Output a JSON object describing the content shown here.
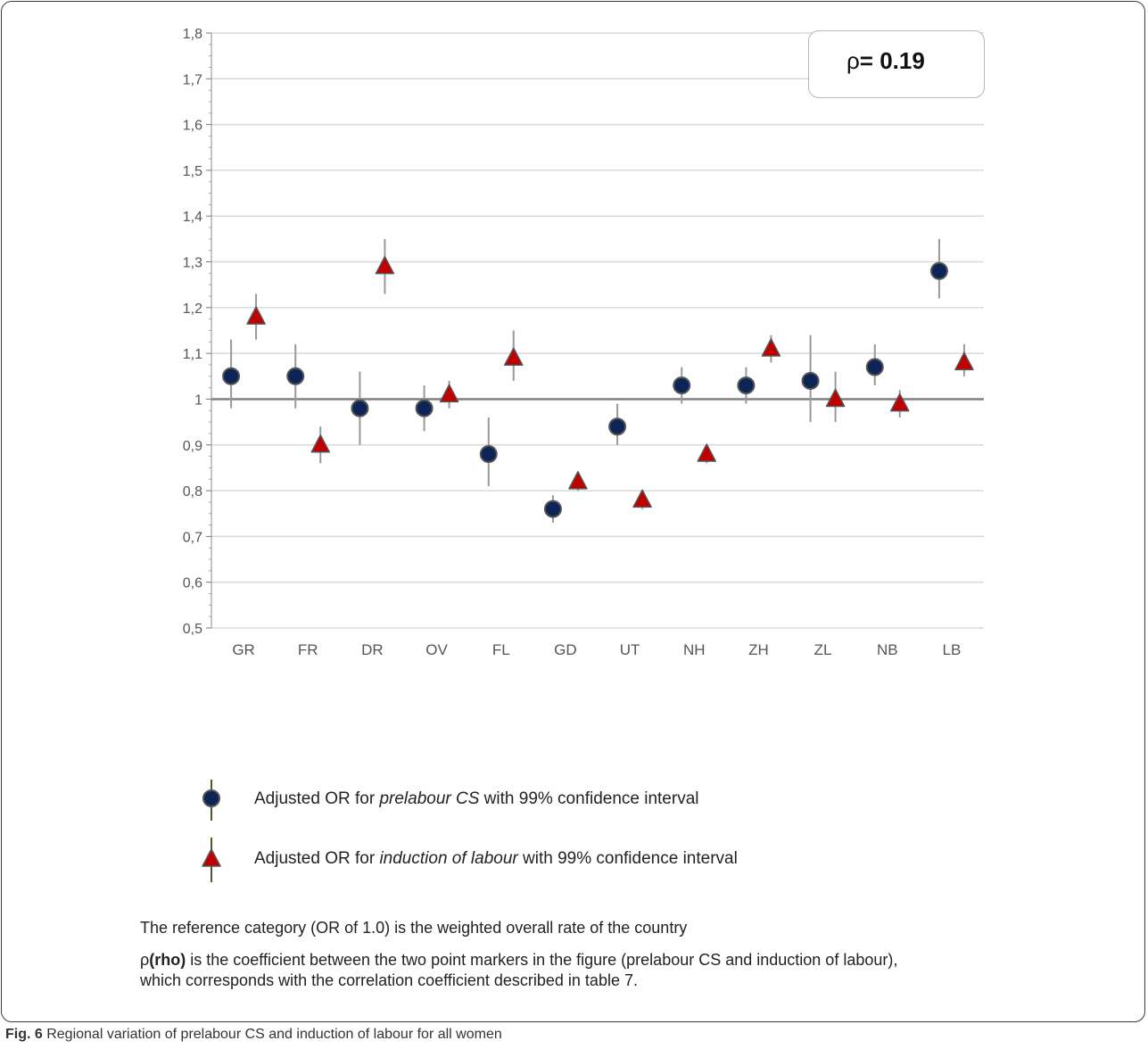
{
  "chart_data": {
    "type": "scatter",
    "categories": [
      "GR",
      "FR",
      "DR",
      "OV",
      "FL",
      "GD",
      "UT",
      "NH",
      "ZH",
      "ZL",
      "NB",
      "LB"
    ],
    "yticks": [
      "0,5",
      "0,6",
      "0,7",
      "0,8",
      "0,9",
      "1",
      "1,1",
      "1,2",
      "1,3",
      "1,4",
      "1,5",
      "1,6",
      "1,7",
      "1,8"
    ],
    "ylim": [
      0.5,
      1.8
    ],
    "reference_line": 1.0,
    "grid": true,
    "series": [
      {
        "name": "Adjusted OR for prelabour CS with 99% confidence interval",
        "marker": "circle",
        "color": "#0d2456",
        "values": [
          1.05,
          1.05,
          0.98,
          0.98,
          0.88,
          0.76,
          0.94,
          1.03,
          1.03,
          1.04,
          1.07,
          1.28
        ],
        "ci_low": [
          0.98,
          0.98,
          0.9,
          0.93,
          0.81,
          0.73,
          0.9,
          0.99,
          0.99,
          0.95,
          1.03,
          1.22
        ],
        "ci_high": [
          1.13,
          1.12,
          1.06,
          1.03,
          0.96,
          0.79,
          0.99,
          1.07,
          1.07,
          1.14,
          1.12,
          1.35
        ]
      },
      {
        "name": "Adjusted OR for induction of labour with 99% confidence interval",
        "marker": "triangle",
        "color": "#c00000",
        "values": [
          1.18,
          0.9,
          1.29,
          1.01,
          1.09,
          0.82,
          0.78,
          0.88,
          1.11,
          1.0,
          0.99,
          1.08
        ],
        "ci_low": [
          1.13,
          0.86,
          1.23,
          0.98,
          1.04,
          0.8,
          0.76,
          0.86,
          1.08,
          0.95,
          0.96,
          1.05
        ],
        "ci_high": [
          1.23,
          0.94,
          1.35,
          1.04,
          1.15,
          0.84,
          0.8,
          0.9,
          1.14,
          1.06,
          1.02,
          1.12
        ]
      }
    ],
    "annotation": {
      "symbol": "ρ",
      "text": "= 0.19"
    }
  },
  "legend": {
    "cs_pre": "Adjusted OR for ",
    "cs_em": "prelabour CS",
    "cs_post": " with 99% confidence interval",
    "iol_pre": "Adjusted OR for ",
    "iol_em": "induction of labour",
    "iol_post": " with 99% confidence interval"
  },
  "notes": {
    "reference": "The reference category (OR of 1.0) is the weighted overall rate of the country",
    "rho_symbol": "ρ",
    "rho_bold": "(rho)",
    "rho_text": " is the coefficient between the two point markers in the figure (prelabour CS and induction of labour), which corresponds with the correlation coefficient described in table 7."
  },
  "caption": {
    "label": "Fig. 6",
    "text": " Regional variation of prelabour CS and induction of labour for all women"
  },
  "colors": {
    "circle_fill": "#0d2456",
    "triangle_fill": "#c00000",
    "marker_stroke": "#555555",
    "ci_line": "#999999",
    "grid": "#d9d9d9",
    "reference_line": "#808080"
  }
}
